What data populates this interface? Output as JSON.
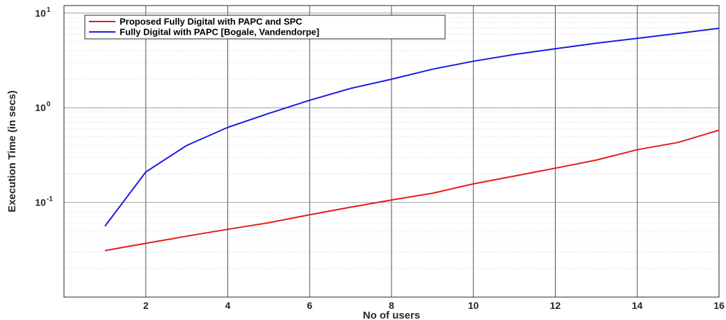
{
  "chart_data": {
    "type": "line",
    "title": "",
    "xlabel": "No of users",
    "ylabel": "Execution Time (in secs)",
    "xlim": [
      0,
      16
    ],
    "ylim": [
      0.01,
      12
    ],
    "yscale": "log",
    "grid": true,
    "minor_grid": true,
    "legend_position": "top-left",
    "x_ticks": [
      2,
      4,
      6,
      8,
      10,
      12,
      14,
      16
    ],
    "x_tick_labels": [
      "2",
      "4",
      "6",
      "8",
      "10",
      "12",
      "14",
      "16"
    ],
    "y_ticks": [
      0.1,
      1,
      10
    ],
    "y_tick_labels": [
      {
        "base": "10",
        "exp": "-1"
      },
      {
        "base": "10",
        "exp": "0"
      },
      {
        "base": "10",
        "exp": "1"
      }
    ],
    "x": [
      1,
      2,
      3,
      4,
      5,
      6,
      7,
      8,
      9,
      10,
      11,
      12,
      13,
      14,
      15,
      16
    ],
    "series": [
      {
        "name": "Proposed Fully Digital with PAPC and SPC",
        "color": "#e41a1c",
        "values": [
          0.031,
          0.037,
          0.044,
          0.052,
          0.061,
          0.074,
          0.089,
          0.106,
          0.125,
          0.157,
          0.19,
          0.23,
          0.28,
          0.36,
          0.43,
          0.58
        ]
      },
      {
        "name": "Fully Digital with PAPC [Bogale, Vandendorpe]",
        "color": "#1a1adf",
        "values": [
          0.056,
          0.21,
          0.4,
          0.62,
          0.87,
          1.2,
          1.6,
          2.0,
          2.55,
          3.1,
          3.65,
          4.2,
          4.8,
          5.4,
          6.1,
          6.9
        ]
      }
    ]
  }
}
